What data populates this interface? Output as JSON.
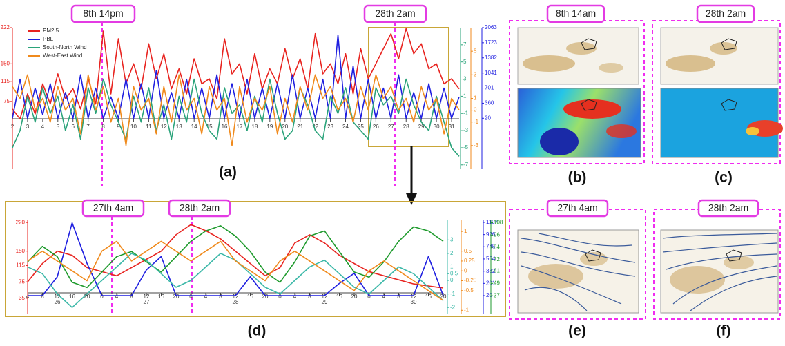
{
  "chart_data": [
    {
      "type": "line",
      "annotations": [
        "8th 14pm",
        "28th 2am"
      ],
      "categories": [
        "2",
        null,
        "3",
        null,
        "4",
        null,
        "5",
        null,
        "6",
        null,
        "7",
        null,
        "8",
        null,
        "9",
        null,
        "10",
        null,
        "11",
        null,
        "12",
        null,
        "13",
        null,
        "14",
        null,
        "15",
        null,
        "16",
        null,
        "17",
        null,
        "18",
        null,
        "19",
        null,
        "20",
        null,
        "21",
        null,
        "22",
        null,
        "23",
        null,
        "24",
        null,
        "25",
        null,
        "26",
        null,
        "27",
        null,
        "28",
        null,
        "29",
        null,
        "30",
        null,
        "31",
        null
      ],
      "series": [
        {
          "name": "PM2.5",
          "color": "#e8231f",
          "ylim": [
            -60,
            222
          ],
          "yticks": [
            222,
            150,
            115,
            75
          ],
          "values": [
            60,
            40,
            90,
            50,
            110,
            70,
            130,
            80,
            100,
            60,
            120,
            70,
            215,
            90,
            200,
            110,
            150,
            100,
            190,
            120,
            170,
            100,
            140,
            90,
            160,
            110,
            120,
            80,
            200,
            130,
            150,
            90,
            170,
            100,
            140,
            110,
            180,
            120,
            160,
            100,
            210,
            130,
            150,
            110,
            170,
            90,
            180,
            120,
            150,
            180,
            210,
            160,
            220,
            170,
            190,
            140,
            150,
            110,
            120,
            100
          ]
        },
        {
          "name": "PBL",
          "color": "#1f1fe0",
          "ylim": [
            -1127,
            2063
          ],
          "yticks": [
            2063,
            1723,
            1382,
            1041,
            701,
            360,
            20
          ],
          "values": [
            20,
            900,
            20,
            700,
            100,
            800,
            20,
            600,
            20,
            1000,
            20,
            700,
            20,
            500,
            20,
            900,
            20,
            800,
            20,
            1100,
            20,
            600,
            20,
            900,
            20,
            700,
            20,
            1000,
            20,
            800,
            20,
            900,
            20,
            700,
            20,
            800,
            20,
            1000,
            20,
            700,
            20,
            900,
            20,
            1900,
            20,
            1200,
            20,
            900,
            20,
            700,
            20,
            1000,
            20,
            600,
            20,
            800,
            20,
            700,
            20,
            500
          ]
        },
        {
          "name": "South-North Wind",
          "color": "#2aa37a",
          "ylim": [
            -7.5,
            9
          ],
          "yticks": [
            7,
            5,
            3,
            1,
            -1,
            -3,
            -5,
            -7
          ],
          "values": [
            -5,
            -3,
            1,
            -2,
            2,
            -1,
            1,
            -3,
            0,
            -4,
            2,
            -1,
            3,
            0,
            -2,
            -4,
            1,
            -2,
            2,
            -3,
            0,
            -4,
            1,
            -2,
            3,
            -1,
            -3,
            -4,
            2,
            -1,
            0,
            -3,
            1,
            -2,
            3,
            -1,
            -4,
            -3,
            2,
            0,
            -3,
            -4,
            1,
            -1,
            2,
            -2,
            -3,
            -4,
            2,
            0,
            1,
            -1,
            3,
            0,
            -2,
            -3,
            1,
            -2,
            -5,
            -6
          ]
        },
        {
          "name": "West-East Wind",
          "color": "#f08a1c",
          "ylim": [
            -5,
            7
          ],
          "yticks": [
            5,
            3,
            1,
            0,
            -1,
            -3
          ],
          "values": [
            2,
            1,
            3,
            0,
            1,
            -1,
            2,
            0,
            1,
            -2,
            3,
            0,
            2,
            -1,
            1,
            -3,
            2,
            0,
            1,
            -2,
            2,
            -1,
            3,
            0,
            1,
            -2,
            2,
            0,
            1,
            -3,
            2,
            -1,
            1,
            0,
            2,
            -2,
            1,
            -1,
            2,
            0,
            3,
            1,
            2,
            0,
            1,
            -1,
            2,
            0,
            3,
            1,
            2,
            0,
            1,
            -1,
            2,
            0,
            1,
            -2,
            1,
            0
          ]
        }
      ]
    },
    {
      "type": "line",
      "annotations": [
        "27th 4am",
        "28th 2am"
      ],
      "categories": [
        "4",
        "8",
        "12",
        "16",
        "20",
        "0",
        "4",
        "8",
        "12",
        "16",
        "20",
        "0",
        "4",
        "8",
        "12",
        "16",
        "20",
        "0",
        "4",
        "8",
        "12",
        "16",
        "20",
        "0",
        "4",
        "8",
        "12",
        "16",
        "20"
      ],
      "days": [
        "26",
        "27",
        "28",
        "29",
        "30"
      ],
      "series": [
        {
          "color": "#e8231f",
          "ylim": [
            -4,
            227
          ],
          "yticks": [
            220,
            150,
            115,
            75,
            35
          ],
          "values": [
            75,
            120,
            150,
            140,
            110,
            100,
            90,
            110,
            130,
            150,
            190,
            215,
            200,
            180,
            150,
            120,
            90,
            110,
            170,
            190,
            170,
            140,
            120,
            100,
            90,
            80,
            70,
            65,
            60
          ]
        },
        {
          "color": "#1f1fe0",
          "ylim": [
            -257,
            1148
          ],
          "yticks": [
            1107,
            926,
            745,
            564,
            382,
            201,
            20
          ],
          "values": [
            20,
            20,
            300,
            1100,
            500,
            20,
            20,
            20,
            400,
            600,
            20,
            20,
            20,
            20,
            20,
            300,
            20,
            20,
            20,
            20,
            20,
            200,
            350,
            20,
            20,
            20,
            20,
            600,
            20
          ]
        },
        {
          "color": "#1e9a2c",
          "ylim": [
            19,
            111
          ],
          "yticks": [
            108,
            96,
            84,
            72,
            61,
            49,
            37
          ],
          "values": [
            70,
            85,
            75,
            50,
            45,
            60,
            75,
            80,
            70,
            60,
            75,
            90,
            100,
            105,
            95,
            80,
            60,
            50,
            70,
            95,
            100,
            80,
            60,
            55,
            70,
            90,
            104,
            100,
            90
          ]
        },
        {
          "color": "#3bb8a8",
          "ylim": [
            -2.5,
            4.5
          ],
          "yticks": [
            3,
            2,
            1,
            0.5,
            0,
            -1,
            -2
          ],
          "values": [
            1,
            0.5,
            -1,
            -2,
            -1,
            0,
            1,
            2,
            1.5,
            0.5,
            -0.5,
            0,
            1,
            2,
            1.5,
            0.5,
            -0.5,
            -1,
            0,
            1,
            1.5,
            0.5,
            -0.5,
            -1,
            0,
            1,
            0.5,
            -0.5,
            -1.5
          ]
        },
        {
          "color": "#f08a1c",
          "ylim": [
            -1.1,
            1.3
          ],
          "yticks": [
            1,
            0.5,
            0.25,
            0,
            -0.25,
            -0.5,
            -1
          ],
          "values": [
            0.25,
            0.5,
            0.25,
            0,
            -0.25,
            0.5,
            0.75,
            0.25,
            0.5,
            0.75,
            0.5,
            0.25,
            0.5,
            0.75,
            0.25,
            0,
            -0.25,
            0.25,
            0.5,
            0.25,
            0,
            -0.25,
            -0.5,
            0,
            0.25,
            0,
            -0.25,
            -0.5,
            -0.75
          ]
        }
      ]
    }
  ],
  "maps": [
    {
      "label": "8th 14am"
    },
    {
      "label": "28th 2am"
    },
    {
      "label": "27th 4am"
    },
    {
      "label": "28th 2am"
    }
  ],
  "panel_labels": [
    "(a)",
    "(b)",
    "(c)",
    "(d)",
    "(e)",
    "(f)"
  ]
}
